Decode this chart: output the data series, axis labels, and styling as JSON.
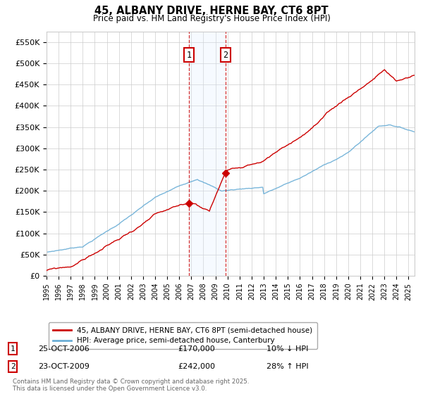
{
  "title": "45, ALBANY DRIVE, HERNE BAY, CT6 8PT",
  "subtitle": "Price paid vs. HM Land Registry's House Price Index (HPI)",
  "ylabel_ticks": [
    "£0",
    "£50K",
    "£100K",
    "£150K",
    "£200K",
    "£250K",
    "£300K",
    "£350K",
    "£400K",
    "£450K",
    "£500K",
    "£550K"
  ],
  "ytick_values": [
    0,
    50000,
    100000,
    150000,
    200000,
    250000,
    300000,
    350000,
    400000,
    450000,
    500000,
    550000
  ],
  "ylim": [
    0,
    575000
  ],
  "xlim_start": 1995.0,
  "xlim_end": 2025.5,
  "hpi_color": "#6baed6",
  "price_color": "#cc0000",
  "sale1_date": 2006.82,
  "sale1_price": 170000,
  "sale2_date": 2009.82,
  "sale2_price": 242000,
  "sale1_label": "1",
  "sale2_label": "2",
  "legend_line1": "45, ALBANY DRIVE, HERNE BAY, CT6 8PT (semi-detached house)",
  "legend_line2": "HPI: Average price, semi-detached house, Canterbury",
  "annotation1_date": "25-OCT-2006",
  "annotation1_price": "£170,000",
  "annotation1_hpi": "10% ↓ HPI",
  "annotation2_date": "23-OCT-2009",
  "annotation2_price": "£242,000",
  "annotation2_hpi": "28% ↑ HPI",
  "footer": "Contains HM Land Registry data © Crown copyright and database right 2025.\nThis data is licensed under the Open Government Licence v3.0.",
  "background_color": "#ffffff",
  "grid_color": "#cccccc",
  "vspan_color": "#ddeeff"
}
